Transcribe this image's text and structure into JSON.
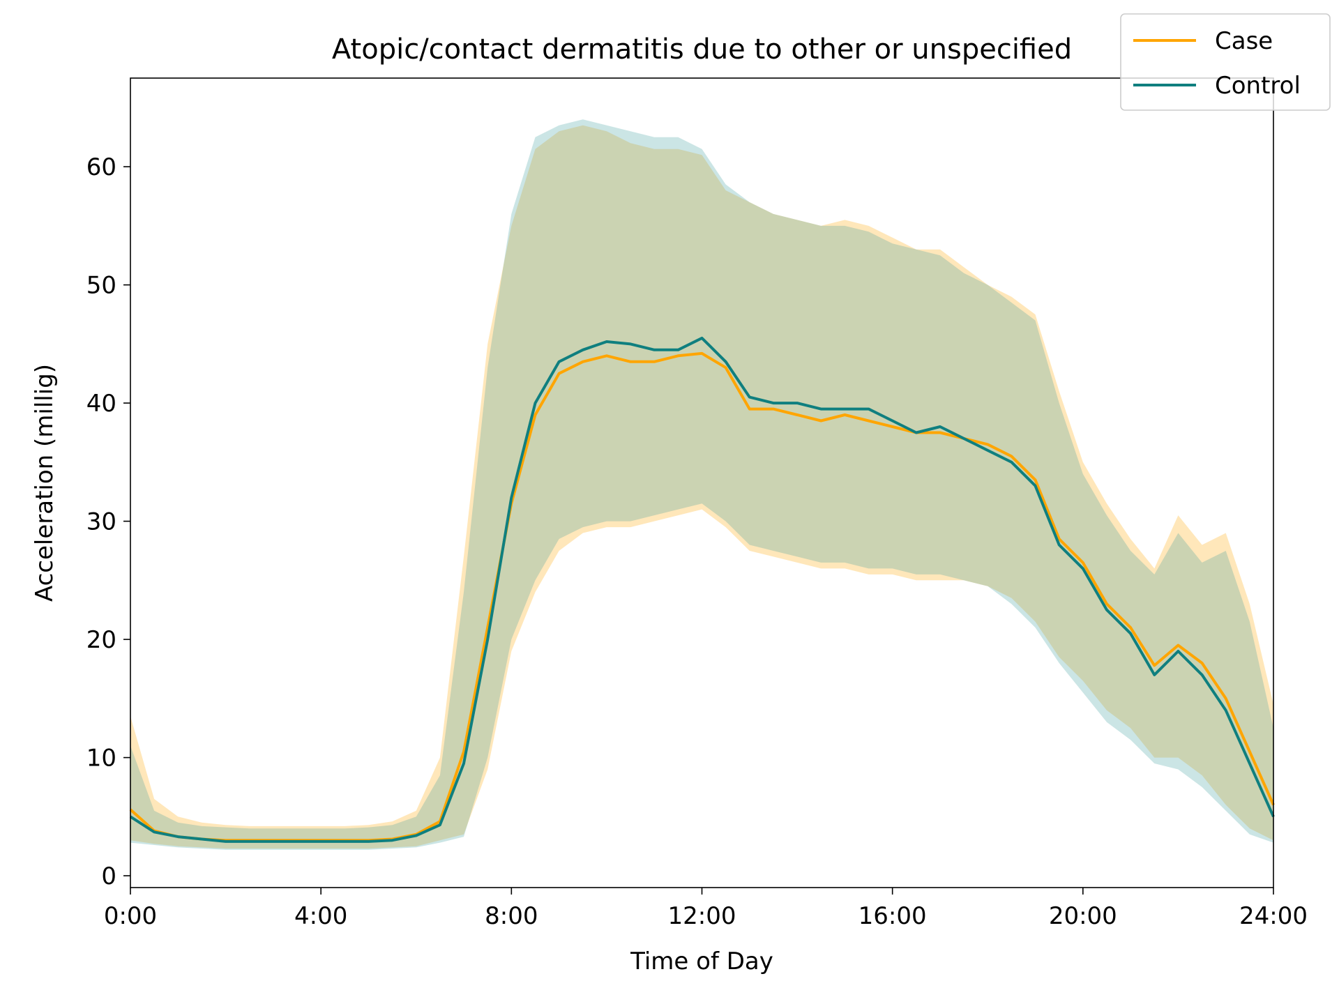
{
  "chart_data": {
    "type": "line",
    "title": "Atopic/contact dermatitis due to other or unspecified",
    "xlabel": "Time of Day",
    "ylabel": "Acceleration (millig)",
    "xlim": [
      0,
      24
    ],
    "ylim": [
      -1,
      67.5
    ],
    "x_ticks": [
      {
        "value": 0,
        "label": "0:00"
      },
      {
        "value": 4,
        "label": "4:00"
      },
      {
        "value": 8,
        "label": "8:00"
      },
      {
        "value": 12,
        "label": "12:00"
      },
      {
        "value": 16,
        "label": "16:00"
      },
      {
        "value": 20,
        "label": "20:00"
      },
      {
        "value": 24,
        "label": "24:00"
      }
    ],
    "y_ticks": [
      {
        "value": 0,
        "label": "0"
      },
      {
        "value": 10,
        "label": "10"
      },
      {
        "value": 20,
        "label": "20"
      },
      {
        "value": 30,
        "label": "30"
      },
      {
        "value": 40,
        "label": "40"
      },
      {
        "value": 50,
        "label": "50"
      },
      {
        "value": 60,
        "label": "60"
      }
    ],
    "grid": false,
    "legend_position": "top-right",
    "x": [
      0,
      0.5,
      1,
      1.5,
      2,
      2.5,
      3,
      3.5,
      4,
      4.5,
      5,
      5.5,
      6,
      6.5,
      7,
      7.5,
      8,
      8.5,
      9,
      9.5,
      10,
      10.5,
      11,
      11.5,
      12,
      12.5,
      13,
      13.5,
      14,
      14.5,
      15,
      15.5,
      16,
      16.5,
      17,
      17.5,
      18,
      18.5,
      19,
      19.5,
      20,
      20.5,
      21,
      21.5,
      22,
      22.5,
      23,
      23.5,
      24
    ],
    "series": [
      {
        "name": "Case",
        "color": "#ffa500",
        "band_color": "#ffa500",
        "values": [
          5.6,
          3.8,
          3.3,
          3.1,
          3.0,
          3.0,
          3.0,
          3.0,
          3.0,
          3.0,
          3.0,
          3.1,
          3.5,
          4.6,
          10.5,
          21.0,
          31.5,
          39.0,
          42.5,
          43.5,
          44.0,
          43.5,
          43.5,
          44.0,
          44.2,
          43.0,
          39.5,
          39.5,
          39.0,
          38.5,
          39.0,
          38.5,
          38.0,
          37.5,
          37.5,
          37.0,
          36.5,
          35.5,
          33.5,
          28.5,
          26.5,
          23.0,
          21.0,
          17.8,
          19.5,
          18.0,
          15.0,
          10.5,
          6.0
        ],
        "upper": [
          13.5,
          6.5,
          5.0,
          4.5,
          4.3,
          4.2,
          4.2,
          4.2,
          4.2,
          4.2,
          4.3,
          4.6,
          5.5,
          10.0,
          27.0,
          45.0,
          55.0,
          61.5,
          63.0,
          63.5,
          63.0,
          62.0,
          61.5,
          61.5,
          61.0,
          58.0,
          57.0,
          56.0,
          55.5,
          55.0,
          55.5,
          55.0,
          54.0,
          53.0,
          53.0,
          51.5,
          50.0,
          49.0,
          47.5,
          41.0,
          35.0,
          31.5,
          28.5,
          26.0,
          30.5,
          28.0,
          29.0,
          23.0,
          14.5
        ],
        "lower": [
          3.0,
          2.7,
          2.5,
          2.4,
          2.3,
          2.3,
          2.3,
          2.3,
          2.3,
          2.3,
          2.3,
          2.4,
          2.5,
          3.0,
          3.5,
          9.0,
          19.0,
          24.0,
          27.5,
          29.0,
          29.5,
          29.5,
          30.0,
          30.5,
          31.0,
          29.5,
          27.5,
          27.0,
          26.5,
          26.0,
          26.0,
          25.5,
          25.5,
          25.0,
          25.0,
          25.0,
          24.5,
          23.5,
          21.5,
          18.5,
          16.5,
          14.0,
          12.5,
          10.0,
          10.0,
          8.5,
          6.0,
          4.0,
          3.0
        ]
      },
      {
        "name": "Control",
        "color": "#0f7f7f",
        "band_color": "#3fa0a0",
        "values": [
          5.0,
          3.7,
          3.3,
          3.1,
          2.9,
          2.9,
          2.9,
          2.9,
          2.9,
          2.9,
          2.9,
          3.0,
          3.4,
          4.3,
          9.5,
          20.0,
          32.0,
          40.0,
          43.5,
          44.5,
          45.2,
          45.0,
          44.5,
          44.5,
          45.5,
          43.5,
          40.5,
          40.0,
          40.0,
          39.5,
          39.5,
          39.5,
          38.5,
          37.5,
          38.0,
          37.0,
          36.0,
          35.0,
          33.0,
          28.0,
          26.0,
          22.5,
          20.5,
          17.0,
          19.0,
          17.0,
          14.0,
          9.5,
          5.0
        ],
        "upper": [
          11.0,
          5.5,
          4.5,
          4.2,
          4.1,
          4.0,
          4.0,
          4.0,
          4.0,
          4.0,
          4.1,
          4.3,
          5.0,
          8.5,
          24.0,
          43.0,
          56.0,
          62.5,
          63.5,
          64.0,
          63.5,
          63.0,
          62.5,
          62.5,
          61.5,
          58.5,
          57.0,
          56.0,
          55.5,
          55.0,
          55.0,
          54.5,
          53.5,
          53.0,
          52.5,
          51.0,
          50.0,
          48.5,
          47.0,
          40.0,
          34.0,
          30.5,
          27.5,
          25.5,
          29.0,
          26.5,
          27.5,
          21.5,
          12.5
        ],
        "lower": [
          2.8,
          2.6,
          2.4,
          2.3,
          2.2,
          2.2,
          2.2,
          2.2,
          2.2,
          2.2,
          2.2,
          2.3,
          2.4,
          2.8,
          3.3,
          10.0,
          20.0,
          25.0,
          28.5,
          29.5,
          30.0,
          30.0,
          30.5,
          31.0,
          31.5,
          30.0,
          28.0,
          27.5,
          27.0,
          26.5,
          26.5,
          26.0,
          26.0,
          25.5,
          25.5,
          25.0,
          24.5,
          23.0,
          21.0,
          18.0,
          15.5,
          13.0,
          11.5,
          9.5,
          9.0,
          7.5,
          5.5,
          3.5,
          2.8
        ]
      }
    ]
  }
}
